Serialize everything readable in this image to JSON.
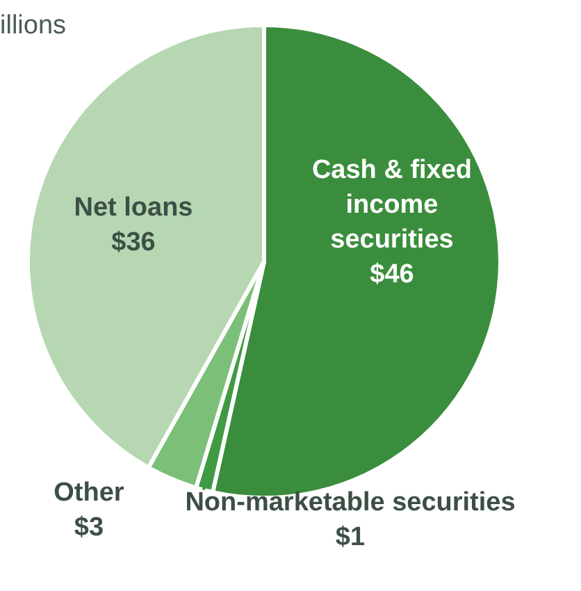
{
  "chart_data": {
    "type": "pie",
    "title": "illions",
    "categories": [
      "Cash & fixed income securities",
      "Non-marketable securities",
      "Other",
      "Net loans"
    ],
    "values": [
      46,
      1,
      3,
      36
    ],
    "value_labels": [
      "$46",
      "$1",
      "$3",
      "$36"
    ],
    "colors": [
      "#3a8d3c",
      "#3f9a42",
      "#7cbf78",
      "#b6d7b2"
    ]
  }
}
